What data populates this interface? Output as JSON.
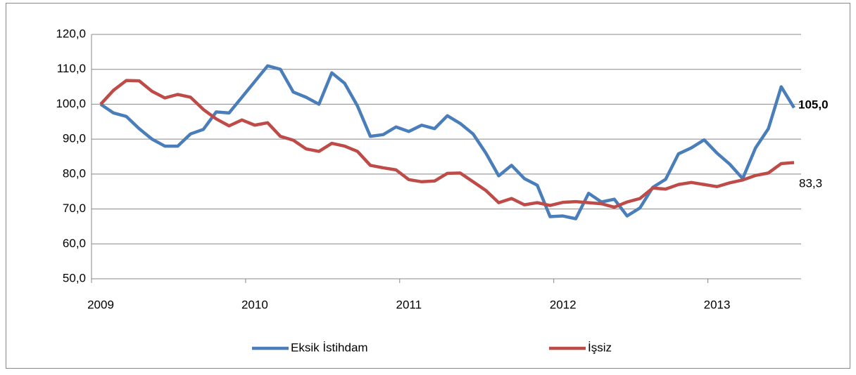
{
  "chart_data": {
    "type": "line",
    "categories": [
      "2009",
      null,
      null,
      null,
      null,
      null,
      null,
      null,
      null,
      null,
      null,
      null,
      "2010",
      null,
      null,
      null,
      null,
      null,
      null,
      null,
      null,
      null,
      null,
      null,
      "2011",
      null,
      null,
      null,
      null,
      null,
      null,
      null,
      null,
      null,
      null,
      null,
      "2012",
      null,
      null,
      null,
      null,
      null,
      null,
      null,
      null,
      null,
      null,
      null,
      "2013",
      null,
      null,
      null,
      null,
      null,
      null
    ],
    "series": [
      {
        "name": "Eksik İstihdam",
        "color": "#4a7ebb",
        "values": [
          100,
          97.5,
          96.5,
          93,
          90,
          88,
          88,
          91.5,
          92.8,
          97.8,
          97.5,
          102,
          106.5,
          111,
          110,
          103.5,
          102,
          100,
          109,
          106,
          99.5,
          90.8,
          91.3,
          93.5,
          92.2,
          94,
          93,
          96.7,
          94.5,
          91.5,
          86,
          79.5,
          82.5,
          78.7,
          76.8,
          67.8,
          68,
          67.2,
          74.5,
          72,
          72.8,
          68,
          70.3,
          76.2,
          78.5,
          85.8,
          87.5,
          89.8,
          86,
          82.8,
          78.7,
          87.5,
          93,
          105,
          99
        ],
        "value_labels": [
          null,
          null,
          null,
          null,
          null,
          null,
          null,
          null,
          null,
          null,
          null,
          null,
          null,
          null,
          null,
          null,
          null,
          null,
          null,
          null,
          null,
          null,
          null,
          null,
          null,
          null,
          null,
          null,
          null,
          null,
          null,
          null,
          null,
          null,
          null,
          null,
          null,
          null,
          null,
          null,
          null,
          null,
          null,
          null,
          null,
          null,
          null,
          null,
          null,
          null,
          null,
          null,
          null,
          "105,0",
          null
        ]
      },
      {
        "name": "İşsiz",
        "color": "#be4b48",
        "values": [
          100,
          104,
          106.8,
          106.7,
          103.7,
          101.8,
          102.8,
          102,
          98.5,
          95.8,
          93.8,
          95.5,
          94,
          94.7,
          90.8,
          89.7,
          87.2,
          86.5,
          88.8,
          88,
          86.5,
          82.5,
          81.8,
          81.2,
          78.4,
          77.8,
          78,
          80.2,
          80.3,
          77.8,
          75.3,
          71.8,
          73,
          71.2,
          71.8,
          71,
          71.9,
          72.1,
          71.8,
          71.5,
          70.5,
          72,
          73,
          76,
          75.7,
          77,
          77.6,
          77,
          76.4,
          77.5,
          78.3,
          79.6,
          80.3,
          83,
          83.3
        ],
        "value_labels": [
          null,
          null,
          null,
          null,
          null,
          null,
          null,
          null,
          null,
          null,
          null,
          null,
          null,
          null,
          null,
          null,
          null,
          null,
          null,
          null,
          null,
          null,
          null,
          null,
          null,
          null,
          null,
          null,
          null,
          null,
          null,
          null,
          null,
          null,
          null,
          null,
          null,
          null,
          null,
          null,
          null,
          null,
          null,
          null,
          null,
          null,
          null,
          null,
          null,
          null,
          null,
          null,
          null,
          null,
          "83,3"
        ]
      }
    ],
    "ylim": [
      50,
      120
    ],
    "yticks": [
      {
        "value": 50,
        "label": "50,0"
      },
      {
        "value": 60,
        "label": "60,0"
      },
      {
        "value": 70,
        "label": "70,0"
      },
      {
        "value": 80,
        "label": "80,0"
      },
      {
        "value": 90,
        "label": "90,0"
      },
      {
        "value": 100,
        "label": "100,0"
      },
      {
        "value": 110,
        "label": "110,0"
      },
      {
        "value": 120,
        "label": "120,0"
      }
    ],
    "grid": true,
    "legend": "bottom"
  }
}
